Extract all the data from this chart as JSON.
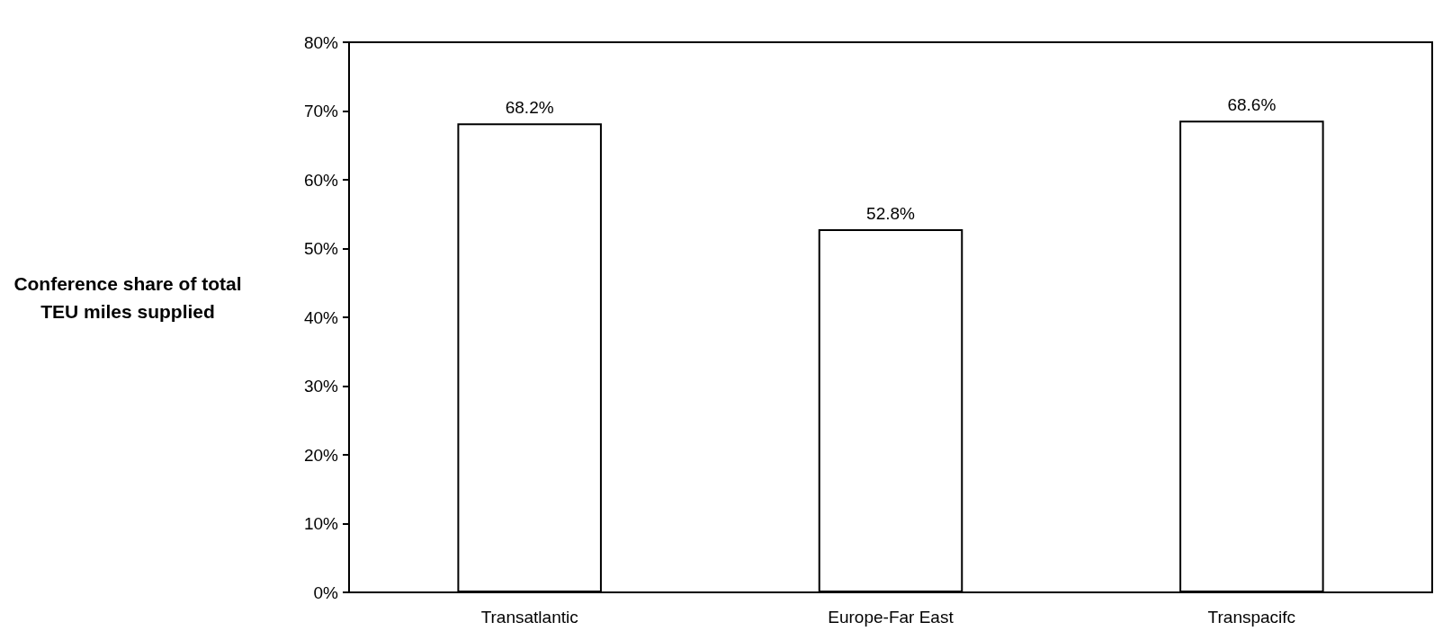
{
  "chart_data": {
    "type": "bar",
    "ylabel": "Conference share of total TEU miles supplied",
    "categories": [
      "Transatlantic",
      "Europe-Far East",
      "Transpacifc"
    ],
    "values": [
      68.2,
      52.8,
      68.6
    ],
    "value_labels": [
      "68.2%",
      "52.8%",
      "68.6%"
    ],
    "color": "#ffffff",
    "ylim": [
      0,
      80
    ],
    "yticks": [
      {
        "value": 0,
        "label": "0%"
      },
      {
        "value": 10,
        "label": "10%"
      },
      {
        "value": 20,
        "label": "20%"
      },
      {
        "value": 30,
        "label": "30%"
      },
      {
        "value": 40,
        "label": "40%"
      },
      {
        "value": 50,
        "label": "50%"
      },
      {
        "value": 60,
        "label": "60%"
      },
      {
        "value": 70,
        "label": "70%"
      },
      {
        "value": 80,
        "label": "80%"
      }
    ],
    "grid": false
  }
}
